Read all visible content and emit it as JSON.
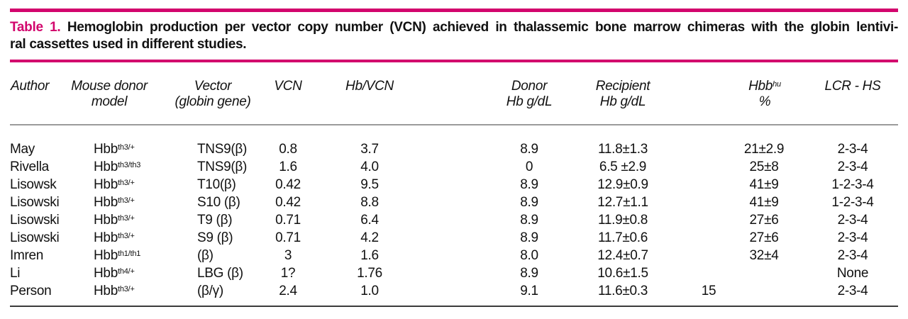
{
  "colors": {
    "accent": "#d2056d",
    "rule_gray": "#9b9b9b",
    "rule_dark": "#3b3b3b",
    "text": "#111111"
  },
  "caption": {
    "label": "Table 1.",
    "line1": "Hemoglobin production per vector copy number (VCN) achieved in thalassemic bone marrow chimeras with the globin lentivi-",
    "line2": "ral cassettes used in different studies."
  },
  "header": {
    "cols": [
      {
        "line1": "Author",
        "line2": ""
      },
      {
        "line1": "Mouse donor",
        "line2": "model"
      },
      {
        "line1": "Vector",
        "line2": "(globin gene)"
      },
      {
        "line1": "VCN",
        "line2": ""
      },
      {
        "line1": "Hb/VCN",
        "line2": ""
      },
      {
        "line1": "Donor",
        "line2": "Hb g/dL"
      },
      {
        "line1": "Recipient",
        "line2": "Hb g/dL"
      },
      {
        "line1": "Hbb",
        "sup": "hu",
        "line2": "%"
      },
      {
        "line1": "LCR - HS",
        "line2": ""
      }
    ]
  },
  "table": {
    "rows": [
      {
        "author": "May",
        "donor_base": "Hbb",
        "donor_sup": "th3/+",
        "vector": "TNS9(β)",
        "vcn": "0.8",
        "hb_vcn": "3.7",
        "donor_hb": "8.9",
        "recipient_hb": "11.8±1.3",
        "hbb_hu": "21±2.9",
        "lcr_hs": "2-3-4"
      },
      {
        "author": "Rivella",
        "donor_base": "Hbb",
        "donor_sup": "th3/th3",
        "vector": "TNS9(β)",
        "vcn": "1.6",
        "hb_vcn": "4.0",
        "donor_hb": "0",
        "recipient_hb": "6.5 ±2.9",
        "hbb_hu": "25±8",
        "lcr_hs": "2-3-4"
      },
      {
        "author": "Lisowsk",
        "donor_base": "Hbb",
        "donor_sup": "th3/+",
        "vector": "T10(β)",
        "vcn": "0.42",
        "hb_vcn": "9.5",
        "donor_hb": "8.9",
        "recipient_hb": "12.9±0.9",
        "hbb_hu": "41±9",
        "lcr_hs": "1-2-3-4"
      },
      {
        "author": "Lisowski",
        "donor_base": "Hbb",
        "donor_sup": "th3/+",
        "vector": "S10 (β)",
        "vcn": "0.42",
        "hb_vcn": "8.8",
        "donor_hb": "8.9",
        "recipient_hb": "12.7±1.1",
        "hbb_hu": "41±9",
        "lcr_hs": "1-2-3-4"
      },
      {
        "author": "Lisowski",
        "donor_base": "Hbb",
        "donor_sup": "th3/+",
        "vector": "T9 (β)",
        "vcn": "0.71",
        "hb_vcn": "6.4",
        "donor_hb": "8.9",
        "recipient_hb": "11.9±0.8",
        "hbb_hu": "27±6",
        "lcr_hs": "2-3-4"
      },
      {
        "author": "Lisowski",
        "donor_base": "Hbb",
        "donor_sup": "th3/+",
        "vector": "S9 (β)",
        "vcn": "0.71",
        "hb_vcn": "4.2",
        "donor_hb": "8.9",
        "recipient_hb": "11.7±0.6",
        "hbb_hu": "27±6",
        "lcr_hs": "2-3-4"
      },
      {
        "author": "Imren",
        "donor_base": "Hbb",
        "donor_sup": "th1/th1",
        "vector": "(β)",
        "vcn": "3",
        "hb_vcn": "1.6",
        "donor_hb": "8.0",
        "recipient_hb": "12.4±0.7",
        "hbb_hu": "32±4",
        "lcr_hs": "2-3-4"
      },
      {
        "author": "Li",
        "donor_base": "Hbb",
        "donor_sup": "th4/+",
        "vector": "LBG (β)",
        "vcn": "1?",
        "hb_vcn": "1.76",
        "donor_hb": "8.9",
        "recipient_hb": "10.6±1.5",
        "hbb_hu": "",
        "lcr_hs": "None"
      },
      {
        "author": "Person",
        "donor_base": "Hbb",
        "donor_sup": "th3/+",
        "vector": "(β/γ)",
        "vcn": "2.4",
        "hb_vcn": "1.0",
        "donor_hb": "9.1",
        "recipient_hb": "11.6±0.3",
        "hbb_hu": "15",
        "lcr_hs": "2-3-4"
      }
    ]
  }
}
